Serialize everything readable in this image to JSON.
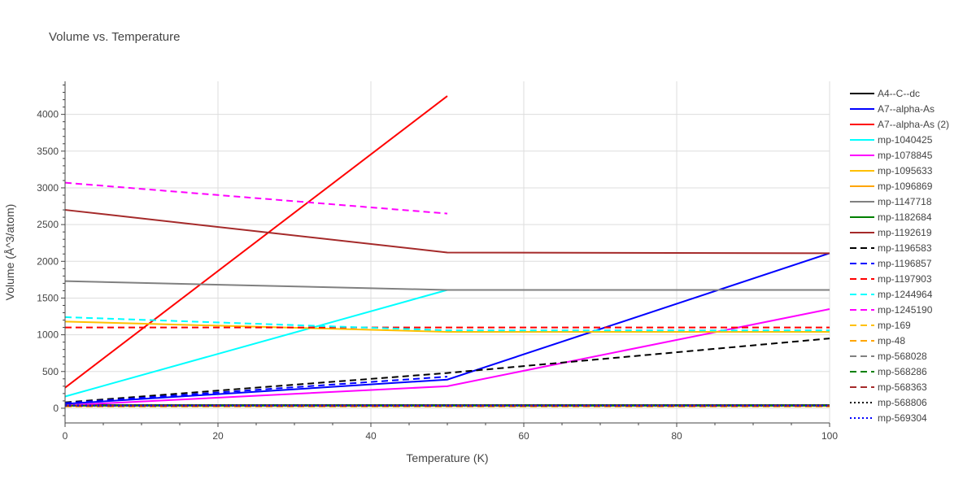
{
  "chart_data": {
    "type": "line",
    "title": "Volume vs. Temperature",
    "xlabel": "Temperature (K)",
    "ylabel": "Volume (Å^3/atom)",
    "xlim": [
      0,
      100
    ],
    "ylim": [
      -200,
      4450
    ],
    "xticks": [
      0,
      20,
      40,
      60,
      80,
      100
    ],
    "yticks": [
      0,
      500,
      1000,
      1500,
      2000,
      2500,
      3000,
      3500,
      4000
    ],
    "grid": true,
    "legend_position": "right",
    "series": [
      {
        "name": "A4--C--dc",
        "color": "#000000",
        "dash": "solid",
        "x": [
          0,
          50,
          100
        ],
        "y": [
          42,
          42,
          42
        ]
      },
      {
        "name": "A7--alpha-As",
        "color": "#0000ff",
        "dash": "solid",
        "x": [
          0,
          50,
          100
        ],
        "y": [
          60,
          390,
          2110
        ]
      },
      {
        "name": "A7--alpha-As (2)",
        "color": "#ff0000",
        "dash": "solid",
        "x": [
          0,
          50
        ],
        "y": [
          280,
          4250
        ]
      },
      {
        "name": "mp-1040425",
        "color": "#00ffff",
        "dash": "solid",
        "x": [
          0,
          50
        ],
        "y": [
          160,
          1610
        ]
      },
      {
        "name": "mp-1078845",
        "color": "#ff00ff",
        "dash": "solid",
        "x": [
          0,
          50,
          100
        ],
        "y": [
          40,
          300,
          1350
        ]
      },
      {
        "name": "mp-1095633",
        "color": "#ffc000",
        "dash": "solid",
        "x": [
          0,
          50,
          100
        ],
        "y": [
          1180,
          1040,
          1040
        ]
      },
      {
        "name": "mp-1096869",
        "color": "#ffa500",
        "dash": "solid",
        "x": [
          0,
          50,
          100
        ],
        "y": [
          30,
          30,
          30
        ]
      },
      {
        "name": "mp-1147718",
        "color": "#808080",
        "dash": "solid",
        "x": [
          0,
          50,
          100
        ],
        "y": [
          1730,
          1610,
          1610
        ]
      },
      {
        "name": "mp-1182684",
        "color": "#008000",
        "dash": "solid",
        "x": [
          0,
          50,
          100
        ],
        "y": [
          36,
          36,
          36
        ]
      },
      {
        "name": "mp-1192619",
        "color": "#a52a2a",
        "dash": "solid",
        "x": [
          0,
          50,
          100
        ],
        "y": [
          2700,
          2120,
          2110
        ]
      },
      {
        "name": "mp-1196583",
        "color": "#000000",
        "dash": "dash",
        "x": [
          0,
          50,
          100
        ],
        "y": [
          80,
          480,
          950
        ]
      },
      {
        "name": "mp-1196857",
        "color": "#0000ff",
        "dash": "dash",
        "x": [
          0,
          50
        ],
        "y": [
          70,
          430
        ]
      },
      {
        "name": "mp-1197903",
        "color": "#ff0000",
        "dash": "dash",
        "x": [
          0,
          50,
          100
        ],
        "y": [
          1100,
          1100,
          1100
        ]
      },
      {
        "name": "mp-1244964",
        "color": "#00ffff",
        "dash": "dash",
        "x": [
          0,
          50,
          100
        ],
        "y": [
          1240,
          1060,
          1060
        ]
      },
      {
        "name": "mp-1245190",
        "color": "#ff00ff",
        "dash": "dash",
        "x": [
          0,
          50
        ],
        "y": [
          3070,
          2650
        ]
      },
      {
        "name": "mp-169",
        "color": "#ffc000",
        "dash": "dash",
        "x": [
          0,
          50,
          100
        ],
        "y": [
          26,
          26,
          26
        ]
      },
      {
        "name": "mp-48",
        "color": "#ffa500",
        "dash": "dash",
        "x": [
          0,
          50,
          100
        ],
        "y": [
          24,
          24,
          24
        ]
      },
      {
        "name": "mp-568028",
        "color": "#808080",
        "dash": "dash",
        "x": [
          0,
          50,
          100
        ],
        "y": [
          34,
          34,
          34
        ]
      },
      {
        "name": "mp-568286",
        "color": "#008000",
        "dash": "dash",
        "x": [
          0,
          50,
          100
        ],
        "y": [
          33,
          33,
          33
        ]
      },
      {
        "name": "mp-568363",
        "color": "#a52a2a",
        "dash": "dash",
        "x": [
          0,
          50,
          100
        ],
        "y": [
          32,
          32,
          32
        ]
      },
      {
        "name": "mp-568806",
        "color": "#000000",
        "dash": "dot",
        "x": [
          0,
          50,
          100
        ],
        "y": [
          38,
          38,
          38
        ]
      },
      {
        "name": "mp-569304",
        "color": "#0000ff",
        "dash": "dot",
        "x": [
          0,
          50,
          100
        ],
        "y": [
          35,
          35,
          35
        ]
      }
    ]
  }
}
